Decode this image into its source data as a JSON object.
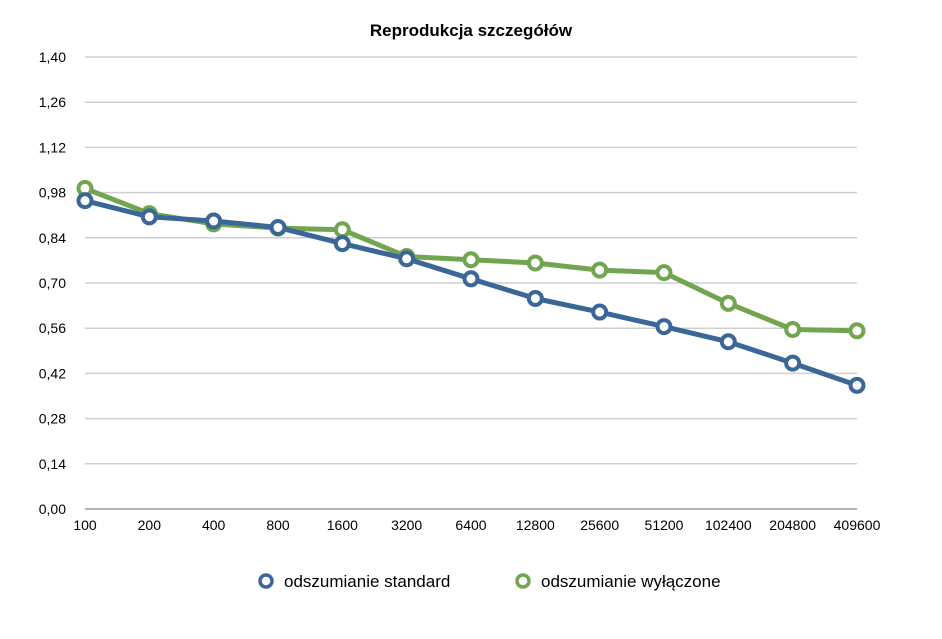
{
  "chart_data": {
    "type": "line",
    "title": "Reprodukcja szczegółów",
    "xlabel": "",
    "ylabel": "",
    "categories": [
      "100",
      "200",
      "400",
      "800",
      "1600",
      "3200",
      "6400",
      "12800",
      "25600",
      "51200",
      "102400",
      "204800",
      "409600"
    ],
    "y_ticks": [
      "0,00",
      "0,14",
      "0,28",
      "0,42",
      "0,56",
      "0,70",
      "0,84",
      "0,98",
      "1,12",
      "1,26",
      "1,40"
    ],
    "ylim": [
      0,
      1.4
    ],
    "grid": true,
    "legend_position": "bottom",
    "series": [
      {
        "name": "odszumianie standard",
        "color": "#3a6698",
        "values": [
          0.955,
          0.905,
          0.892,
          0.872,
          0.822,
          0.775,
          0.713,
          0.652,
          0.61,
          0.565,
          0.518,
          0.452,
          0.383
        ]
      },
      {
        "name": "odszumianie wyłączone",
        "color": "#72a551",
        "values": [
          0.993,
          0.915,
          0.883,
          0.87,
          0.865,
          0.782,
          0.772,
          0.762,
          0.74,
          0.732,
          0.637,
          0.556,
          0.552
        ]
      }
    ]
  }
}
